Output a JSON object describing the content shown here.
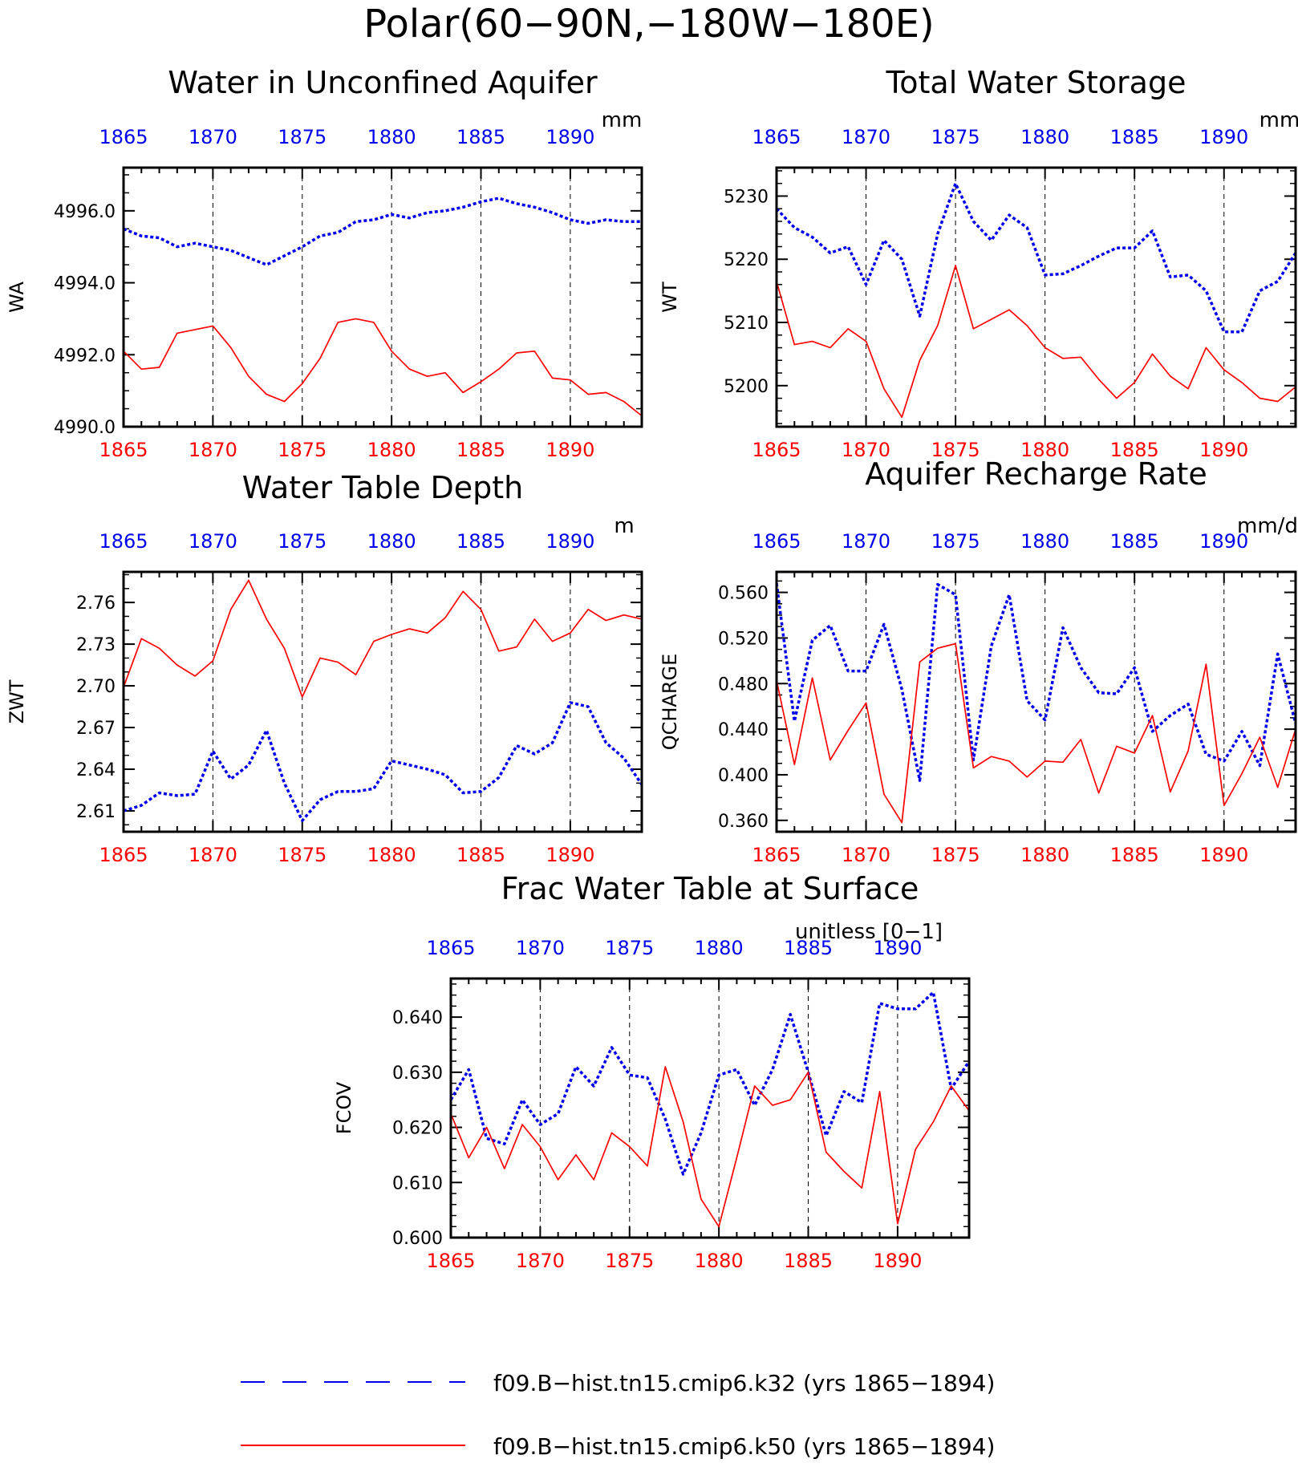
{
  "figure": {
    "title": "Polar(60−90N,−180W−180E)"
  },
  "colors": {
    "series_a": "#0000ee",
    "series_b": "#ff0000",
    "axis": "#000000",
    "grid": "#000000"
  },
  "legend": {
    "placement": "bottom-center",
    "items": [
      {
        "label": "f09.B−hist.tn15.cmip6.k32 (yrs 1865−1894)",
        "style": "dashed",
        "color": "#0000ee"
      },
      {
        "label": "f09.B−hist.tn15.cmip6.k50 (yrs 1865−1894)",
        "style": "solid",
        "color": "#ff0000"
      }
    ]
  },
  "chart_data": [
    {
      "type": "line",
      "title": "Water in Unconfined Aquifer",
      "ylabel": "WA",
      "units": "mm",
      "xlim": [
        1865,
        1894
      ],
      "xticks": [
        1865,
        1870,
        1875,
        1880,
        1885,
        1890
      ],
      "ylim": [
        4990,
        4997.2
      ],
      "yticks": [
        4990,
        4992,
        4994,
        4996
      ],
      "ytick_labels": [
        "4990.0",
        "4992.0",
        "4994.0",
        "4996.0"
      ],
      "minor_y": 0.5,
      "grid": "vertical dashed at major x ticks",
      "x": [
        1865,
        1866,
        1867,
        1868,
        1869,
        1870,
        1871,
        1872,
        1873,
        1874,
        1875,
        1876,
        1877,
        1878,
        1879,
        1880,
        1881,
        1882,
        1883,
        1884,
        1885,
        1886,
        1887,
        1888,
        1889,
        1890,
        1891,
        1892,
        1893,
        1894
      ],
      "series": [
        {
          "name": "f09.B−hist.tn15.cmip6.k32 (yrs 1865−1894)",
          "style": "dashed",
          "values": [
            4995.5,
            4995.3,
            4995.25,
            4995.0,
            4995.1,
            4995.0,
            4994.9,
            4994.7,
            4994.5,
            4994.75,
            4995.0,
            4995.3,
            4995.4,
            4995.7,
            4995.75,
            4995.9,
            4995.8,
            4995.95,
            4996.0,
            4996.1,
            4996.25,
            4996.35,
            4996.2,
            4996.1,
            4995.95,
            4995.75,
            4995.65,
            4995.75,
            4995.7,
            4995.7
          ]
        },
        {
          "name": "f09.B−hist.tn15.cmip6.k50 (yrs 1865−1894)",
          "style": "solid",
          "values": [
            4992.1,
            4991.6,
            4991.65,
            4992.6,
            4992.7,
            4992.8,
            4992.2,
            4991.4,
            4990.9,
            4990.7,
            4991.2,
            4991.9,
            4992.9,
            4993.0,
            4992.9,
            4992.1,
            4991.6,
            4991.4,
            4991.5,
            4990.95,
            4991.25,
            4991.6,
            4992.05,
            4992.1,
            4991.35,
            4991.3,
            4990.9,
            4990.95,
            4990.7,
            4990.3
          ]
        }
      ]
    },
    {
      "type": "line",
      "title": "Total Water Storage",
      "ylabel": "WT",
      "units": "mm",
      "xlim": [
        1865,
        1894
      ],
      "xticks": [
        1865,
        1870,
        1875,
        1880,
        1885,
        1890
      ],
      "ylim": [
        5193.5,
        5234.5
      ],
      "yticks": [
        5200,
        5210,
        5220,
        5230
      ],
      "ytick_labels": [
        "5200",
        "5210",
        "5220",
        "5230"
      ],
      "minor_y": 2,
      "grid": "vertical dashed at major x ticks",
      "x": [
        1865,
        1866,
        1867,
        1868,
        1869,
        1870,
        1871,
        1872,
        1873,
        1874,
        1875,
        1876,
        1877,
        1878,
        1879,
        1880,
        1881,
        1882,
        1883,
        1884,
        1885,
        1886,
        1887,
        1888,
        1889,
        1890,
        1891,
        1892,
        1893,
        1894
      ],
      "series": [
        {
          "name": "f09.B−hist.tn15.cmip6.k32 (yrs 1865−1894)",
          "style": "dashed",
          "values": [
            5228,
            5225,
            5223.5,
            5221,
            5222,
            5216,
            5223,
            5220,
            5211,
            5224,
            5232,
            5226,
            5223,
            5227,
            5225,
            5217.5,
            5217.7,
            5219,
            5220.5,
            5221.8,
            5221.8,
            5224.5,
            5217.2,
            5217.5,
            5215,
            5208.5,
            5208.5,
            5215,
            5216.5,
            5221
          ]
        },
        {
          "name": "f09.B−hist.tn15.cmip6.k50 (yrs 1865−1894)",
          "style": "solid",
          "values": [
            5216.5,
            5206.5,
            5207,
            5206,
            5209,
            5207,
            5199.5,
            5195,
            5204,
            5209.5,
            5219,
            5209,
            5210.5,
            5212,
            5209.5,
            5206,
            5204.3,
            5204.5,
            5201,
            5198,
            5200.5,
            5205,
            5201.5,
            5199.5,
            5206,
            5202.5,
            5200.5,
            5198,
            5197.5,
            5199.8
          ]
        }
      ]
    },
    {
      "type": "line",
      "title": "Water Table Depth",
      "ylabel": "ZWT",
      "units": "m",
      "xlim": [
        1865,
        1894
      ],
      "xticks": [
        1865,
        1870,
        1875,
        1880,
        1885,
        1890
      ],
      "ylim": [
        2.595,
        2.782
      ],
      "yticks": [
        2.61,
        2.64,
        2.67,
        2.7,
        2.73,
        2.76
      ],
      "ytick_labels": [
        "2.61",
        "2.64",
        "2.67",
        "2.70",
        "2.73",
        "2.76"
      ],
      "minor_y": 0.01,
      "grid": "vertical dashed at major x ticks",
      "x": [
        1865,
        1866,
        1867,
        1868,
        1869,
        1870,
        1871,
        1872,
        1873,
        1874,
        1875,
        1876,
        1877,
        1878,
        1879,
        1880,
        1881,
        1882,
        1883,
        1884,
        1885,
        1886,
        1887,
        1888,
        1889,
        1890,
        1891,
        1892,
        1893,
        1894
      ],
      "series": [
        {
          "name": "f09.B−hist.tn15.cmip6.k32 (yrs 1865−1894)",
          "style": "dashed",
          "values": [
            2.61,
            2.614,
            2.623,
            2.621,
            2.622,
            2.653,
            2.633,
            2.643,
            2.668,
            2.63,
            2.603,
            2.618,
            2.624,
            2.624,
            2.626,
            2.646,
            2.643,
            2.64,
            2.636,
            2.623,
            2.624,
            2.634,
            2.657,
            2.651,
            2.659,
            2.688,
            2.685,
            2.659,
            2.648,
            2.629
          ]
        },
        {
          "name": "f09.B−hist.tn15.cmip6.k50 (yrs 1865−1894)",
          "style": "solid",
          "values": [
            2.699,
            2.734,
            2.727,
            2.715,
            2.707,
            2.718,
            2.755,
            2.776,
            2.748,
            2.727,
            2.692,
            2.72,
            2.717,
            2.708,
            2.732,
            2.737,
            2.741,
            2.738,
            2.749,
            2.768,
            2.755,
            2.725,
            2.728,
            2.748,
            2.732,
            2.738,
            2.755,
            2.747,
            2.751,
            2.748
          ]
        }
      ]
    },
    {
      "type": "line",
      "title": "Aquifer Recharge Rate",
      "ylabel": "QCHARGE",
      "units": "mm/d",
      "xlim": [
        1865,
        1894
      ],
      "xticks": [
        1865,
        1870,
        1875,
        1880,
        1885,
        1890
      ],
      "ylim": [
        0.35,
        0.578
      ],
      "yticks": [
        0.36,
        0.4,
        0.44,
        0.48,
        0.52,
        0.56
      ],
      "ytick_labels": [
        "0.360",
        "0.400",
        "0.440",
        "0.480",
        "0.520",
        "0.560"
      ],
      "minor_y": 0.01,
      "grid": "vertical dashed at major x ticks",
      "x": [
        1865,
        1866,
        1867,
        1868,
        1869,
        1870,
        1871,
        1872,
        1873,
        1874,
        1875,
        1876,
        1877,
        1878,
        1879,
        1880,
        1881,
        1882,
        1883,
        1884,
        1885,
        1886,
        1887,
        1888,
        1889,
        1890,
        1891,
        1892,
        1893,
        1894
      ],
      "series": [
        {
          "name": "f09.B−hist.tn15.cmip6.k32 (yrs 1865−1894)",
          "style": "dashed",
          "values": [
            0.568,
            0.447,
            0.518,
            0.531,
            0.491,
            0.491,
            0.532,
            0.475,
            0.395,
            0.567,
            0.558,
            0.413,
            0.513,
            0.558,
            0.465,
            0.448,
            0.529,
            0.494,
            0.472,
            0.471,
            0.494,
            0.438,
            0.452,
            0.462,
            0.418,
            0.412,
            0.438,
            0.408,
            0.506,
            0.445
          ]
        },
        {
          "name": "f09.B−hist.tn15.cmip6.k50 (yrs 1865−1894)",
          "style": "solid",
          "values": [
            0.483,
            0.409,
            0.485,
            0.413,
            0.439,
            0.463,
            0.383,
            0.358,
            0.499,
            0.511,
            0.515,
            0.406,
            0.416,
            0.412,
            0.398,
            0.412,
            0.411,
            0.431,
            0.384,
            0.425,
            0.419,
            0.452,
            0.385,
            0.421,
            0.497,
            0.373,
            0.401,
            0.433,
            0.389,
            0.44
          ]
        }
      ]
    },
    {
      "type": "line",
      "title": "Frac Water Table at Surface",
      "ylabel": "FCOV",
      "units": "unitless [0−1]",
      "xlim": [
        1865,
        1894
      ],
      "xticks": [
        1865,
        1870,
        1875,
        1880,
        1885,
        1890
      ],
      "ylim": [
        0.6,
        0.647
      ],
      "yticks": [
        0.6,
        0.61,
        0.62,
        0.63,
        0.64
      ],
      "ytick_labels": [
        "0.600",
        "0.610",
        "0.620",
        "0.630",
        "0.640"
      ],
      "minor_y": 0.002,
      "grid": "vertical dashed at major x ticks",
      "x": [
        1865,
        1866,
        1867,
        1868,
        1869,
        1870,
        1871,
        1872,
        1873,
        1874,
        1875,
        1876,
        1877,
        1878,
        1879,
        1880,
        1881,
        1882,
        1883,
        1884,
        1885,
        1886,
        1887,
        1888,
        1889,
        1890,
        1891,
        1892,
        1893,
        1894
      ],
      "series": [
        {
          "name": "f09.B−hist.tn15.cmip6.k32 (yrs 1865−1894)",
          "style": "dashed",
          "values": [
            0.625,
            0.6305,
            0.618,
            0.617,
            0.625,
            0.6205,
            0.6225,
            0.631,
            0.6275,
            0.6345,
            0.6295,
            0.629,
            0.6215,
            0.6115,
            0.619,
            0.6295,
            0.6305,
            0.624,
            0.6305,
            0.6405,
            0.63,
            0.6185,
            0.6265,
            0.6245,
            0.6425,
            0.6415,
            0.6415,
            0.6445,
            0.627,
            0.632
          ]
        },
        {
          "name": "f09.B−hist.tn15.cmip6.k50 (yrs 1865−1894)",
          "style": "solid",
          "values": [
            0.6225,
            0.6145,
            0.62,
            0.6125,
            0.6205,
            0.6165,
            0.6105,
            0.615,
            0.6105,
            0.619,
            0.6165,
            0.613,
            0.631,
            0.621,
            0.607,
            0.602,
            0.6145,
            0.6275,
            0.624,
            0.625,
            0.63,
            0.6155,
            0.612,
            0.609,
            0.6265,
            0.6025,
            0.616,
            0.621,
            0.6275,
            0.623
          ]
        }
      ]
    }
  ]
}
